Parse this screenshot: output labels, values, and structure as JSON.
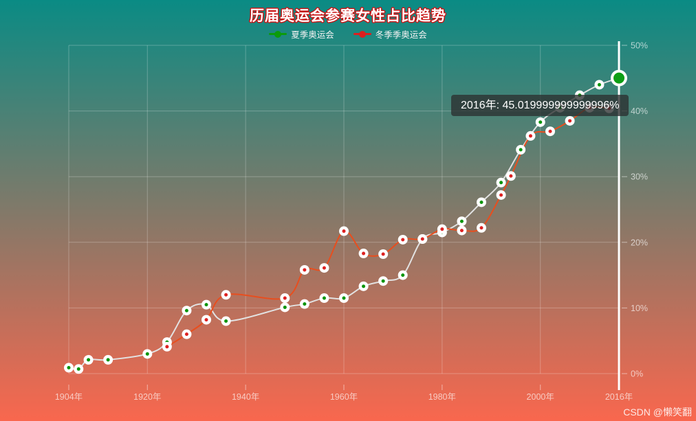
{
  "title": {
    "text": "历届奥运会参赛女性占比趋势",
    "text_color": "#ffffff",
    "stroke_color": "#c81414"
  },
  "legend": {
    "items": [
      {
        "label": "夏季奥运会",
        "color": "#0b9b0b"
      },
      {
        "label": "冬季季奥运会",
        "color": "#dc1f1f"
      }
    ]
  },
  "tooltip": {
    "text": "2016年: 45.019999999999996%",
    "bg": "rgba(43,47,47,0.78)"
  },
  "watermark": {
    "text": "CSDN @懒笑翻"
  },
  "colors": {
    "background_top": "#0a8b84",
    "background_bottom": "#f9674e",
    "gridline": "rgba(255,255,255,0.25)",
    "axis_label": "rgba(255,255,255,0.65)",
    "axis_tick": "rgba(255,255,255,0.5)",
    "axis_pointer": "#ffffff",
    "marker_ring": "#ffffff"
  },
  "chart_data": {
    "type": "line",
    "title": "历届奥运会参赛女性占比趋势",
    "xlabel": "",
    "ylabel": "",
    "x_axis": {
      "kind": "time-years",
      "min": 1904,
      "max": 2016,
      "tick_years": [
        1904,
        1920,
        1940,
        1960,
        1980,
        2000,
        2016
      ],
      "tick_labels": [
        "1904年",
        "1920年",
        "1940年",
        "1960年",
        "1980年",
        "2000年",
        "2016年"
      ]
    },
    "y_axis": {
      "position": "right",
      "min": 0,
      "max": 50,
      "tick_values": [
        0,
        10,
        20,
        30,
        40,
        50
      ],
      "tick_labels": [
        "0%",
        "10%",
        "20%",
        "30%",
        "40%",
        "50%"
      ]
    },
    "grid": true,
    "legend_position": "top",
    "series": [
      {
        "name": "夏季奥运会",
        "line_color": "#e2e2e2",
        "dot_color": "#089408",
        "smooth": true,
        "points": [
          [
            1904,
            0.9
          ],
          [
            1906,
            0.7
          ],
          [
            1908,
            2.1
          ],
          [
            1912,
            2.1
          ],
          [
            1920,
            3.0
          ],
          [
            1924,
            4.8
          ],
          [
            1928,
            9.6
          ],
          [
            1932,
            10.5
          ],
          [
            1936,
            8.0
          ],
          [
            1948,
            10.1
          ],
          [
            1952,
            10.6
          ],
          [
            1956,
            11.5
          ],
          [
            1960,
            11.5
          ],
          [
            1964,
            13.3
          ],
          [
            1968,
            14.1
          ],
          [
            1972,
            15.0
          ],
          [
            1976,
            20.5
          ],
          [
            1980,
            21.5
          ],
          [
            1984,
            23.2
          ],
          [
            1988,
            26.1
          ],
          [
            1992,
            29.1
          ],
          [
            1996,
            34.1
          ],
          [
            2000,
            38.3
          ],
          [
            2004,
            40.5
          ],
          [
            2008,
            42.4
          ],
          [
            2012,
            44.0
          ],
          [
            2016,
            45.02
          ]
        ]
      },
      {
        "name": "冬季季奥运会",
        "line_color": "#e84e1e",
        "dot_color": "#dd2121",
        "smooth": true,
        "points": [
          [
            1924,
            4.1
          ],
          [
            1928,
            6.0
          ],
          [
            1932,
            8.2
          ],
          [
            1936,
            12.0
          ],
          [
            1948,
            11.5
          ],
          [
            1952,
            15.8
          ],
          [
            1956,
            16.1
          ],
          [
            1960,
            21.7
          ],
          [
            1964,
            18.3
          ],
          [
            1968,
            18.2
          ],
          [
            1972,
            20.4
          ],
          [
            1976,
            20.5
          ],
          [
            1980,
            22.0
          ],
          [
            1984,
            21.8
          ],
          [
            1988,
            22.2
          ],
          [
            1992,
            27.2
          ],
          [
            1994,
            30.1
          ],
          [
            1998,
            36.2
          ],
          [
            2002,
            36.9
          ],
          [
            2006,
            38.5
          ],
          [
            2010,
            40.5
          ],
          [
            2014,
            40.4
          ]
        ]
      }
    ],
    "highlight": {
      "series": "夏季奥运会",
      "year": 2016,
      "value": 45.02,
      "marker_color": "#0d9e15"
    },
    "axis_pointer": {
      "year": 2016
    }
  }
}
